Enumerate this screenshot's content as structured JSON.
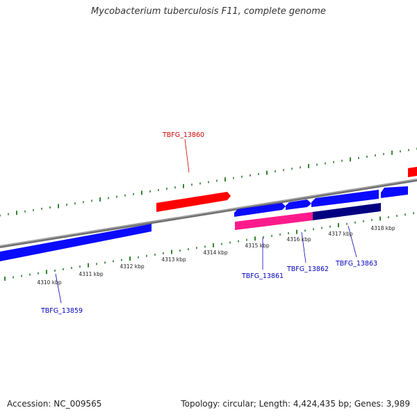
{
  "title": "Mycobacterium tuberculosis F11, complete genome",
  "footer": {
    "accession": "Accession: NC_009565",
    "summary": "Topology: circular; Length: 4,424,435 bp; Genes: 3,989"
  },
  "colors": {
    "forward_gene": "#0a0aff",
    "reverse_gene": "#ff0000",
    "rna_feature": "#ff1a8c",
    "highlight_feature": "#000080",
    "backbone": "#888888",
    "ticks": "#006400",
    "gene_label_blue": "#0000bb",
    "gene_label_red": "#cc0000"
  },
  "scale": {
    "unit": "kbp",
    "tick_labels": [
      "4310 kbp",
      "4311 kbp",
      "4312 kbp",
      "4313 kbp",
      "4314 kbp",
      "4315 kbp",
      "4316 kbp",
      "4317 kbp",
      "4318 kbp"
    ]
  },
  "genes": [
    {
      "label": "TBFG_13859",
      "strand": "forward",
      "color": "forward_gene"
    },
    {
      "label": "TBFG_13860",
      "strand": "reverse",
      "color": "reverse_gene"
    },
    {
      "label": "TBFG_13861",
      "strand": "forward",
      "color": "forward_gene"
    },
    {
      "label": "TBFG_13862",
      "strand": "forward",
      "color": "forward_gene"
    },
    {
      "label": "TBFG_13863",
      "strand": "forward",
      "color": "forward_gene"
    }
  ]
}
